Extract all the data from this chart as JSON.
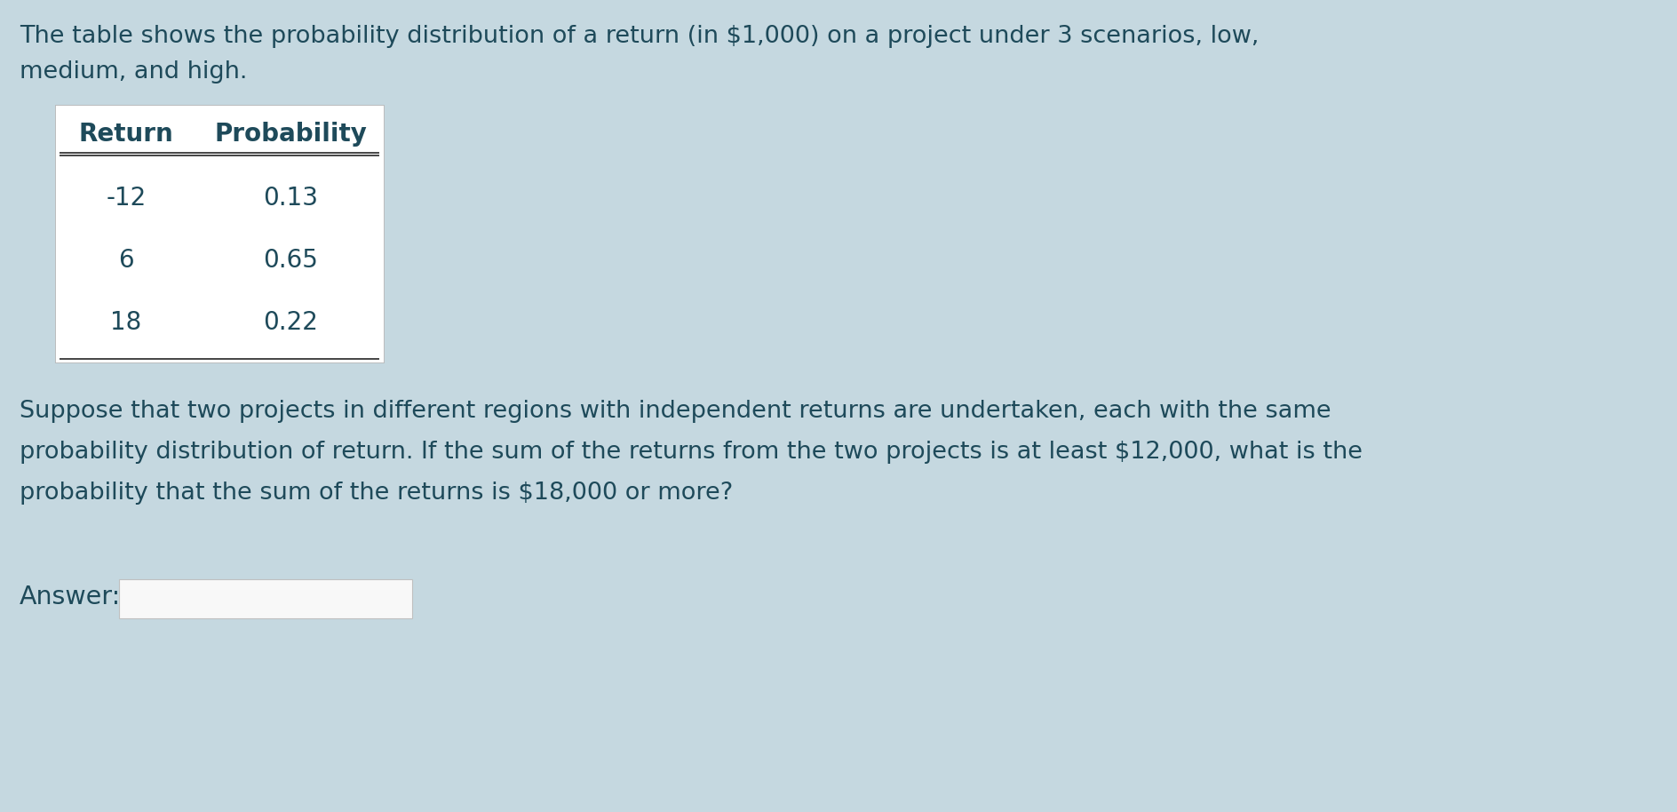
{
  "bg_color": "#c5d8e0",
  "text_color": "#1e4a5a",
  "title_line1": "The table shows the probability distribution of a return (in $1,000) on a project under 3 scenarios, low,",
  "title_line2": "medium, and high.",
  "table_headers": [
    "Return",
    "Probability"
  ],
  "table_rows": [
    [
      "-12",
      "0.13"
    ],
    [
      "6",
      "0.65"
    ],
    [
      "18",
      "0.22"
    ]
  ],
  "table_bg": "#ffffff",
  "body_line1": "Suppose that two projects in different regions with independent returns are undertaken, each with the same",
  "body_line2": "probability distribution of return. If the sum of the returns from the two projects is at least $12,000, what is the",
  "body_line3": "probability that the sum of the returns is $18,000 or more?",
  "answer_label": "Answer:",
  "answer_box_bg": "#f0f0f0",
  "font_size_body": 19.5,
  "font_size_table": 20,
  "font_size_header": 20,
  "fig_width": 18.88,
  "fig_height": 9.14,
  "dpi": 100
}
